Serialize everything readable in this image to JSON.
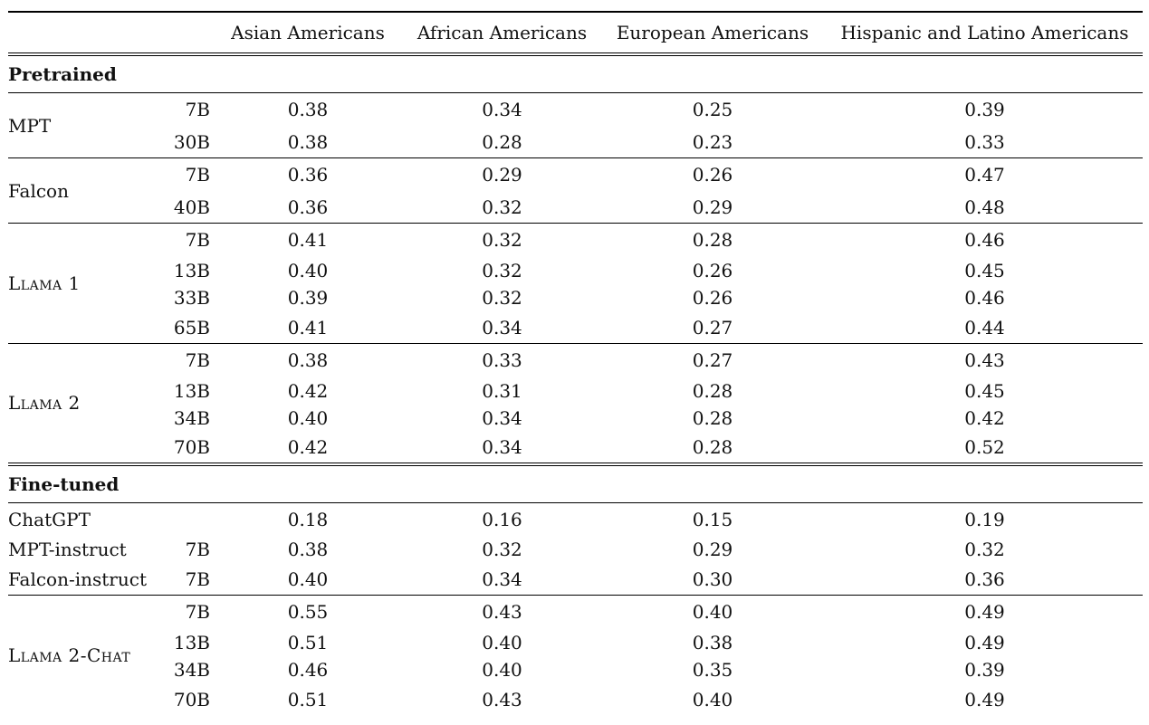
{
  "columns": [
    "Asian Americans",
    "African Americans",
    "European Americans",
    "Hispanic and Latino Americans"
  ],
  "sections": [
    {
      "label": "Pretrained",
      "groups": [
        {
          "model": "MPT",
          "small_caps": false,
          "rows": [
            {
              "size": "7B",
              "values": [
                "0.38",
                "0.34",
                "0.25",
                "0.39"
              ]
            },
            {
              "size": "30B",
              "values": [
                "0.38",
                "0.28",
                "0.23",
                "0.33"
              ]
            }
          ]
        },
        {
          "model": "Falcon",
          "small_caps": false,
          "rows": [
            {
              "size": "7B",
              "values": [
                "0.36",
                "0.29",
                "0.26",
                "0.47"
              ]
            },
            {
              "size": "40B",
              "values": [
                "0.36",
                "0.32",
                "0.29",
                "0.48"
              ]
            }
          ]
        },
        {
          "model": "Llama 1",
          "small_caps": true,
          "rows": [
            {
              "size": "7B",
              "values": [
                "0.41",
                "0.32",
                "0.28",
                "0.46"
              ]
            },
            {
              "size": "13B",
              "values": [
                "0.40",
                "0.32",
                "0.26",
                "0.45"
              ]
            },
            {
              "size": "33B",
              "values": [
                "0.39",
                "0.32",
                "0.26",
                "0.46"
              ]
            },
            {
              "size": "65B",
              "values": [
                "0.41",
                "0.34",
                "0.27",
                "0.44"
              ]
            }
          ]
        },
        {
          "model": "Llama 2",
          "small_caps": true,
          "rows": [
            {
              "size": "7B",
              "values": [
                "0.38",
                "0.33",
                "0.27",
                "0.43"
              ]
            },
            {
              "size": "13B",
              "values": [
                "0.42",
                "0.31",
                "0.28",
                "0.45"
              ]
            },
            {
              "size": "34B",
              "values": [
                "0.40",
                "0.34",
                "0.28",
                "0.42"
              ]
            },
            {
              "size": "70B",
              "values": [
                "0.42",
                "0.34",
                "0.28",
                "0.52"
              ]
            }
          ]
        }
      ]
    },
    {
      "label": "Fine-tuned",
      "groups": [
        {
          "model": null,
          "small_caps": false,
          "rows": [
            {
              "label": "ChatGPT",
              "size": "",
              "values": [
                "0.18",
                "0.16",
                "0.15",
                "0.19"
              ]
            },
            {
              "label": "MPT-instruct",
              "size": "7B",
              "values": [
                "0.38",
                "0.32",
                "0.29",
                "0.32"
              ]
            },
            {
              "label": "Falcon-instruct",
              "size": "7B",
              "values": [
                "0.40",
                "0.34",
                "0.30",
                "0.36"
              ]
            }
          ]
        },
        {
          "model": "Llama 2-Chat",
          "small_caps": true,
          "rows": [
            {
              "size": "7B",
              "values": [
                "0.55",
                "0.43",
                "0.40",
                "0.49"
              ]
            },
            {
              "size": "13B",
              "values": [
                "0.51",
                "0.40",
                "0.38",
                "0.49"
              ]
            },
            {
              "size": "34B",
              "values": [
                "0.46",
                "0.40",
                "0.35",
                "0.39"
              ]
            },
            {
              "size": "70B",
              "values": [
                "0.51",
                "0.43",
                "0.40",
                "0.49"
              ]
            }
          ]
        }
      ]
    }
  ]
}
